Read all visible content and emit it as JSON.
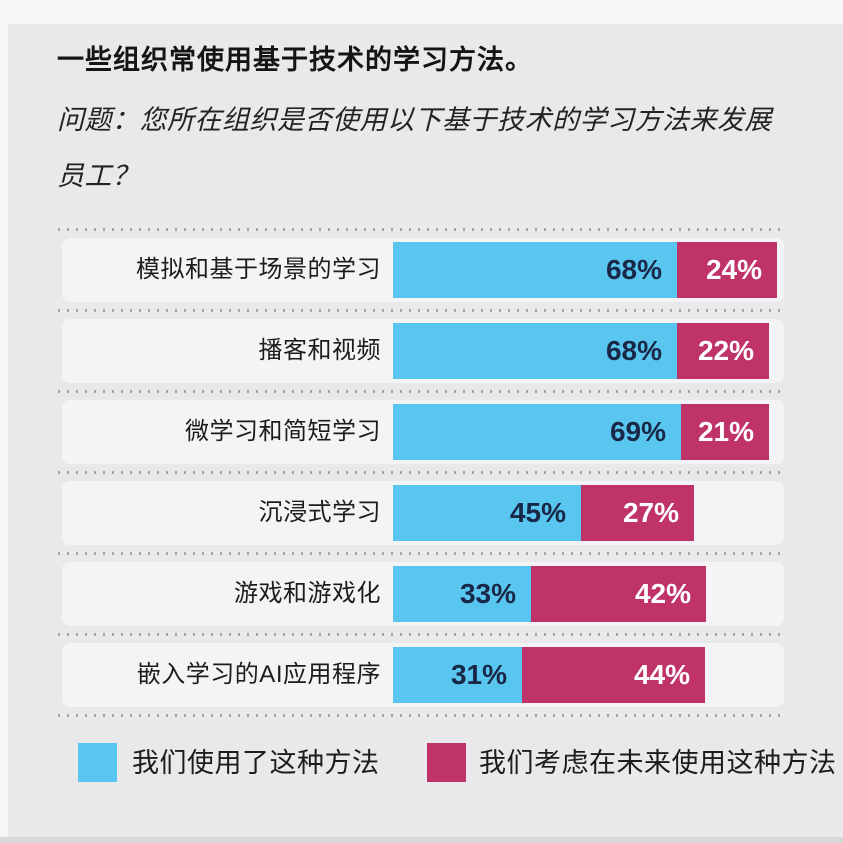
{
  "header": {
    "title": "一些组织常使用基于技术的学习方法。",
    "question_lines": [
      "问题：您所在组织是否使用以下基于技术的学习方法来发展",
      "员工？"
    ]
  },
  "chart_data": {
    "type": "bar",
    "orientation": "horizontal",
    "stacked": true,
    "unit": "percent",
    "categories": [
      "模拟和基于场景的学习",
      "播客和视频",
      "微学习和简短学习",
      "沉浸式学习",
      "游戏和游戏化",
      "嵌入学习的AI应用程序"
    ],
    "series": [
      {
        "name": "我们使用了这种方法",
        "color": "#58C6EF",
        "values": [
          68,
          68,
          69,
          45,
          33,
          31
        ]
      },
      {
        "name": "我们考虑在未来使用这种方法",
        "color": "#BF3368",
        "values": [
          24,
          22,
          21,
          27,
          42,
          44
        ]
      }
    ],
    "value_label_suffix": "%",
    "xlim": [
      0,
      100
    ],
    "grid": "dotted-row-separators",
    "legend_position": "bottom"
  },
  "colors": {
    "background": "#E9E9EC",
    "used_segment": "#58C6EF",
    "considered_segment": "#BF3368",
    "used_value_text": "#1A2848",
    "considered_value_text": "#FFFFFF",
    "dotted_line": "#97979D"
  }
}
